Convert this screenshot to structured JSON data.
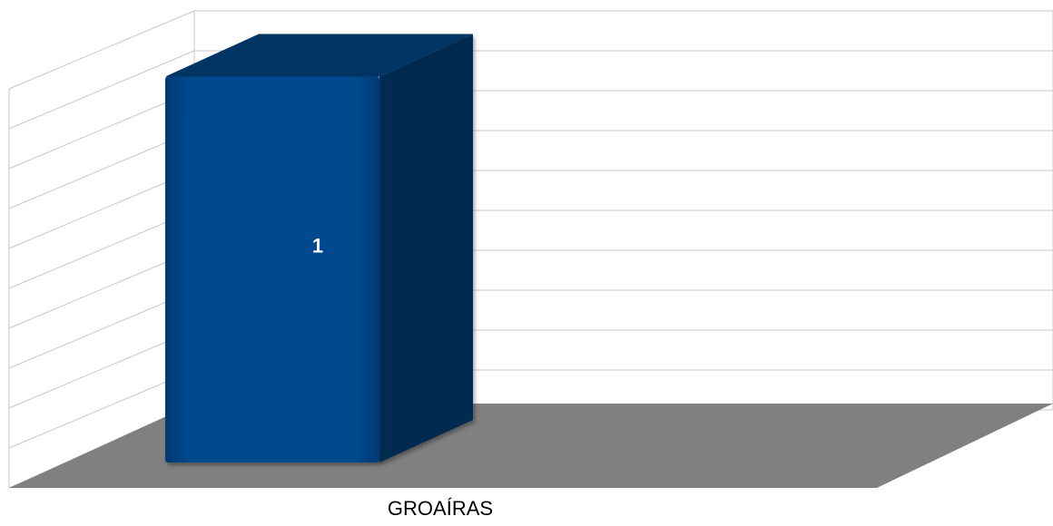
{
  "chart_data": {
    "type": "bar",
    "style": "3d-column",
    "categories": [
      "GROAÍRAS"
    ],
    "values": [
      1
    ],
    "data_labels": [
      "1"
    ],
    "ylim": [
      0,
      1.1
    ],
    "gridlines": 10,
    "grid": true,
    "legend": "none",
    "title": "",
    "xlabel": "",
    "ylabel": "",
    "colors": {
      "bar_front": "#004a8f",
      "bar_side": "#00294f",
      "bar_top": "#003464",
      "floor": "#808080",
      "gridline": "#c8c8c8",
      "background": "#ffffff"
    }
  }
}
